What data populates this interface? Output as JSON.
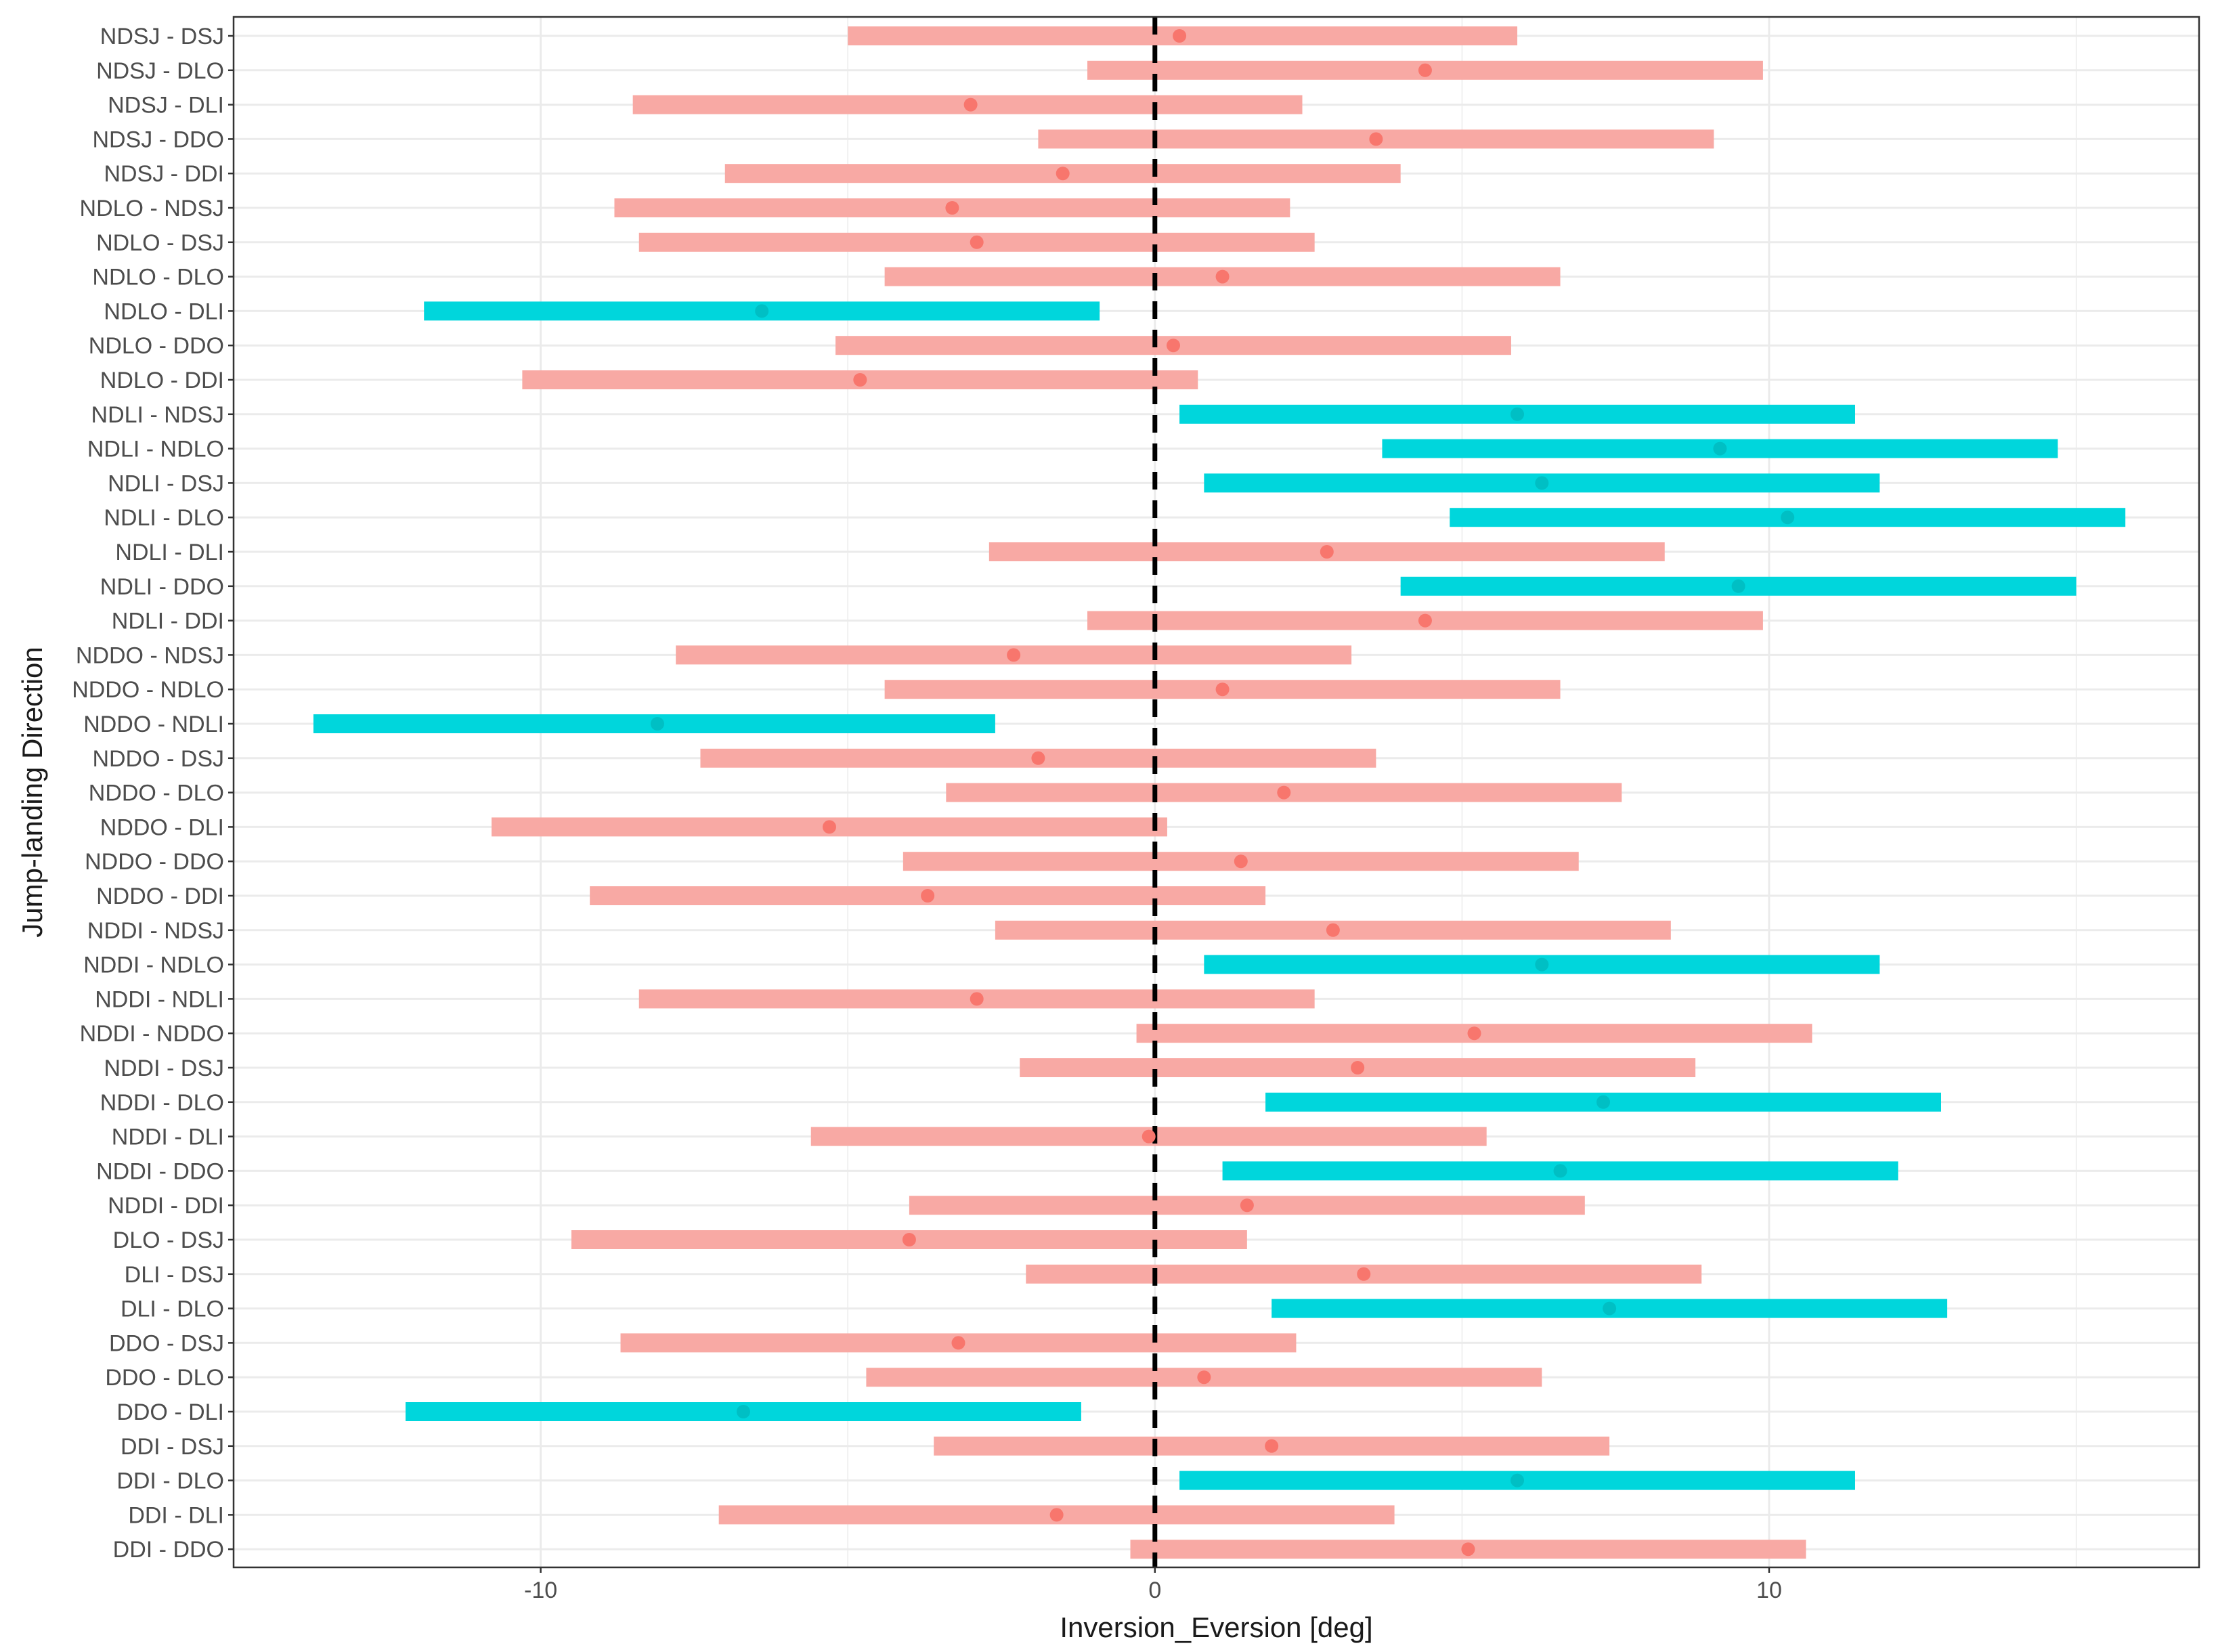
{
  "chart_data": {
    "type": "interval",
    "title": "",
    "xlabel": "Inversion_Eversion [deg]",
    "ylabel": "Jump-landing Direction",
    "xlim": [
      -15,
      17
    ],
    "xticks": [
      -10,
      0,
      10
    ],
    "xtick_labels": [
      "-10",
      "0",
      "10"
    ],
    "reference_line_x": 0,
    "colors": {
      "not_significant": "#f8a9a4",
      "not_significant_point": "#f8766d",
      "significant": "#00d6dc",
      "significant_point": "#00bfc4",
      "grid": "#ebebeb",
      "panel_border": "#333333",
      "ref_line": "#000000"
    },
    "rows": [
      {
        "label": "NDSJ - DSJ",
        "low": -5.0,
        "high": 5.9,
        "estimate": 0.4,
        "significant": false
      },
      {
        "label": "NDSJ - DLO",
        "low": -1.1,
        "high": 9.9,
        "estimate": 4.4,
        "significant": false
      },
      {
        "label": "NDSJ - DLI",
        "low": -8.5,
        "high": 2.4,
        "estimate": -3.0,
        "significant": false
      },
      {
        "label": "NDSJ - DDO",
        "low": -1.9,
        "high": 9.1,
        "estimate": 3.6,
        "significant": false
      },
      {
        "label": "NDSJ - DDI",
        "low": -7.0,
        "high": 4.0,
        "estimate": -1.5,
        "significant": false
      },
      {
        "label": "NDLO - NDSJ",
        "low": -8.8,
        "high": 2.2,
        "estimate": -3.3,
        "significant": false
      },
      {
        "label": "NDLO - DSJ",
        "low": -8.4,
        "high": 2.6,
        "estimate": -2.9,
        "significant": false
      },
      {
        "label": "NDLO - DLO",
        "low": -4.4,
        "high": 6.6,
        "estimate": 1.1,
        "significant": false
      },
      {
        "label": "NDLO - DLI",
        "low": -11.9,
        "high": -0.9,
        "estimate": -6.4,
        "significant": true
      },
      {
        "label": "NDLO - DDO",
        "low": -5.2,
        "high": 5.8,
        "estimate": 0.3,
        "significant": false
      },
      {
        "label": "NDLO - DDI",
        "low": -10.3,
        "high": 0.7,
        "estimate": -4.8,
        "significant": false
      },
      {
        "label": "NDLI - NDSJ",
        "low": 0.4,
        "high": 11.4,
        "estimate": 5.9,
        "significant": true
      },
      {
        "label": "NDLI - NDLO",
        "low": 3.7,
        "high": 14.7,
        "estimate": 9.2,
        "significant": true
      },
      {
        "label": "NDLI - DSJ",
        "low": 0.8,
        "high": 11.8,
        "estimate": 6.3,
        "significant": true
      },
      {
        "label": "NDLI - DLO",
        "low": 4.8,
        "high": 15.8,
        "estimate": 10.3,
        "significant": true
      },
      {
        "label": "NDLI - DLI",
        "low": -2.7,
        "high": 8.3,
        "estimate": 2.8,
        "significant": false
      },
      {
        "label": "NDLI - DDO",
        "low": 4.0,
        "high": 15.0,
        "estimate": 9.5,
        "significant": true
      },
      {
        "label": "NDLI - DDI",
        "low": -1.1,
        "high": 9.9,
        "estimate": 4.4,
        "significant": false
      },
      {
        "label": "NDDO - NDSJ",
        "low": -7.8,
        "high": 3.2,
        "estimate": -2.3,
        "significant": false
      },
      {
        "label": "NDDO - NDLO",
        "low": -4.4,
        "high": 6.6,
        "estimate": 1.1,
        "significant": false
      },
      {
        "label": "NDDO - NDLI",
        "low": -13.7,
        "high": -2.6,
        "estimate": -8.1,
        "significant": true
      },
      {
        "label": "NDDO - DSJ",
        "low": -7.4,
        "high": 3.6,
        "estimate": -1.9,
        "significant": false
      },
      {
        "label": "NDDO - DLO",
        "low": -3.4,
        "high": 7.6,
        "estimate": 2.1,
        "significant": false
      },
      {
        "label": "NDDO - DLI",
        "low": -10.8,
        "high": 0.2,
        "estimate": -5.3,
        "significant": false
      },
      {
        "label": "NDDO - DDO",
        "low": -4.1,
        "high": 6.9,
        "estimate": 1.4,
        "significant": false
      },
      {
        "label": "NDDO - DDI",
        "low": -9.2,
        "high": 1.8,
        "estimate": -3.7,
        "significant": false
      },
      {
        "label": "NDDI - NDSJ",
        "low": -2.6,
        "high": 8.4,
        "estimate": 2.9,
        "significant": false
      },
      {
        "label": "NDDI - NDLO",
        "low": 0.8,
        "high": 11.8,
        "estimate": 6.3,
        "significant": true
      },
      {
        "label": "NDDI - NDLI",
        "low": -8.4,
        "high": 2.6,
        "estimate": -2.9,
        "significant": false
      },
      {
        "label": "NDDI - NDDO",
        "low": -0.3,
        "high": 10.7,
        "estimate": 5.2,
        "significant": false
      },
      {
        "label": "NDDI - DSJ",
        "low": -2.2,
        "high": 8.8,
        "estimate": 3.3,
        "significant": false
      },
      {
        "label": "NDDI - DLO",
        "low": 1.8,
        "high": 12.8,
        "estimate": 7.3,
        "significant": true
      },
      {
        "label": "NDDI - DLI",
        "low": -5.6,
        "high": 5.4,
        "estimate": -0.1,
        "significant": false
      },
      {
        "label": "NDDI - DDO",
        "low": 1.1,
        "high": 12.1,
        "estimate": 6.6,
        "significant": true
      },
      {
        "label": "NDDI - DDI",
        "low": -4.0,
        "high": 7.0,
        "estimate": 1.5,
        "significant": false
      },
      {
        "label": "DLO - DSJ",
        "low": -9.5,
        "high": 1.5,
        "estimate": -4.0,
        "significant": false
      },
      {
        "label": "DLI - DSJ",
        "low": -2.1,
        "high": 8.9,
        "estimate": 3.4,
        "significant": false
      },
      {
        "label": "DLI - DLO",
        "low": 1.9,
        "high": 12.9,
        "estimate": 7.4,
        "significant": true
      },
      {
        "label": "DDO - DSJ",
        "low": -8.7,
        "high": 2.3,
        "estimate": -3.2,
        "significant": false
      },
      {
        "label": "DDO - DLO",
        "low": -4.7,
        "high": 6.3,
        "estimate": 0.8,
        "significant": false
      },
      {
        "label": "DDO - DLI",
        "low": -12.2,
        "high": -1.2,
        "estimate": -6.7,
        "significant": true
      },
      {
        "label": "DDI - DSJ",
        "low": -3.6,
        "high": 7.4,
        "estimate": 1.9,
        "significant": false
      },
      {
        "label": "DDI - DLO",
        "low": 0.4,
        "high": 11.4,
        "estimate": 5.9,
        "significant": true
      },
      {
        "label": "DDI - DLI",
        "low": -7.1,
        "high": 3.9,
        "estimate": -1.6,
        "significant": false
      },
      {
        "label": "DDI - DDO",
        "low": -0.4,
        "high": 10.6,
        "estimate": 5.1,
        "significant": false
      }
    ]
  }
}
